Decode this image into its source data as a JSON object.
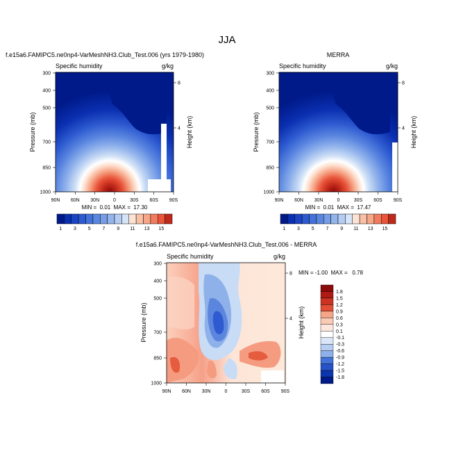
{
  "page": {
    "title": "JJA"
  },
  "chart_data": [
    {
      "type": "heatmap",
      "title": "f.e15a6.FAMIPC5.ne0np4-VarMeshNH3.Club_Test.006 (yrs 1979-1980)",
      "subtitle_left": "Specific humidity",
      "subtitle_right": "g/kg",
      "ylabel": "Pressure (mb)",
      "ylabel_right": "Height (km)",
      "x_ticks": [
        "90N",
        "60N",
        "30N",
        "0",
        "30S",
        "60S",
        "90S"
      ],
      "y_ticks": [
        "300",
        "400",
        "500",
        "700",
        "850",
        "1000"
      ],
      "y_ticks_right": [
        "8",
        "4"
      ],
      "stats": "MIN =  0.01  MAX =  17.30",
      "min": 0.01,
      "max": 17.3,
      "colorbar_labels": [
        "1",
        "3",
        "5",
        "7",
        "9",
        "11",
        "13",
        "15"
      ],
      "colorbar_levels": 16
    },
    {
      "type": "heatmap",
      "title": "MERRA",
      "subtitle_left": "Specific humidity",
      "subtitle_right": "g/kg",
      "ylabel": "Pressure (mb)",
      "ylabel_right": "Height (km)",
      "x_ticks": [
        "90N",
        "60N",
        "30N",
        "0",
        "30S",
        "60S",
        "90S"
      ],
      "y_ticks": [
        "300",
        "400",
        "500",
        "700",
        "850",
        "1000"
      ],
      "y_ticks_right": [
        "8",
        "4"
      ],
      "stats": "MIN =  0.01  MAX =  17.47",
      "min": 0.01,
      "max": 17.47,
      "colorbar_labels": [
        "1",
        "3",
        "5",
        "7",
        "9",
        "11",
        "13",
        "15"
      ],
      "colorbar_levels": 16
    },
    {
      "type": "heatmap",
      "title": "f.e15a6.FAMIPC5.ne0np4-VarMeshNH3.Club_Test.006 - MERRA",
      "subtitle_left": "Specific humidity",
      "subtitle_right": "g/kg",
      "ylabel": "Pressure (mb)",
      "ylabel_right": "Height (km)",
      "x_ticks": [
        "90N",
        "60N",
        "30N",
        "0",
        "30S",
        "60S",
        "90S"
      ],
      "y_ticks": [
        "300",
        "400",
        "500",
        "700",
        "850",
        "1000"
      ],
      "y_ticks_right": [
        "8",
        "4"
      ],
      "stats": "MIN = -1.00  MAX =   0.78",
      "min": -1.0,
      "max": 0.78,
      "colorbar_labels": [
        "1.8",
        "1.5",
        "1.2",
        "0.9",
        "0.6",
        "0.3",
        "0.1",
        "-0.1",
        "-0.3",
        "-0.6",
        "-0.9",
        "-1.2",
        "-1.5",
        "-1.8"
      ]
    }
  ]
}
